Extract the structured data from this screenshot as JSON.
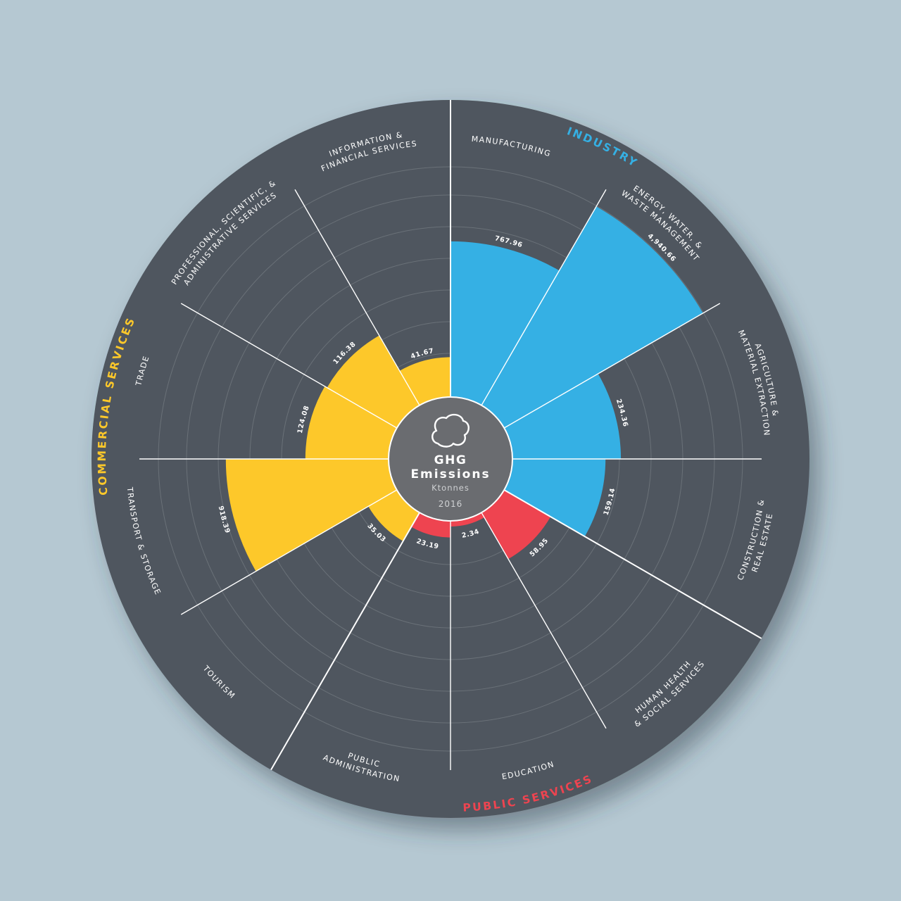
{
  "center": {
    "title_line1": "GHG",
    "title_line2": "Emissions",
    "unit": "Ktonnes",
    "year": "2016",
    "icon": "cloud-icon"
  },
  "colors": {
    "background": "#b5c8d2",
    "disc": "#50575e",
    "center": "#6a6c70",
    "grid": "#6a7178"
  },
  "chart_data": {
    "type": "polar-area",
    "unit": "Ktonnes",
    "groups": [
      {
        "name": "INDUSTRY",
        "color": "#35b0e4"
      },
      {
        "name": "PUBLIC SERVICES",
        "color": "#ee4450"
      },
      {
        "name": "COMMERCIAL SERVICES",
        "color": "#fdc82a"
      }
    ],
    "categories": [
      {
        "label": [
          "MANUFACTURING"
        ],
        "value": 767.96,
        "value_label": "767.96",
        "group": 0
      },
      {
        "label": [
          "ENERGY, WATER, &",
          "WASTE MANAGEMENT"
        ],
        "value": 4940.66,
        "value_label": "4,940.66",
        "group": 0
      },
      {
        "label": [
          "AGRICULTURE &",
          "MATERIAL EXTRACTION"
        ],
        "value": 234.36,
        "value_label": "234.36",
        "group": 0
      },
      {
        "label": [
          "CONSTRUCTION &",
          "REAL ESTATE"
        ],
        "value": 159.14,
        "value_label": "159.14",
        "group": 0
      },
      {
        "label": [
          "HUMAN HEALTH",
          "& SOCIAL SERVICES"
        ],
        "value": 58.95,
        "value_label": "58.95",
        "group": 1
      },
      {
        "label": [
          "EDUCATION"
        ],
        "value": 2.34,
        "value_label": "2.34",
        "group": 1
      },
      {
        "label": [
          "PUBLIC",
          "ADMINISTRATION"
        ],
        "value": 23.19,
        "value_label": "23.19",
        "group": 1
      },
      {
        "label": [
          "TOURISM"
        ],
        "value": 35.03,
        "value_label": "35.03",
        "group": 2
      },
      {
        "label": [
          "TRANSPORT & STORAGE"
        ],
        "value": 918.39,
        "value_label": "918.39",
        "group": 2
      },
      {
        "label": [
          "TRADE"
        ],
        "value": 124.08,
        "value_label": "124.08",
        "group": 2
      },
      {
        "label": [
          "PROFESSIONAL, SCIENTIFIC, &",
          "ADMINISTRATIVE SERVICES"
        ],
        "value": 116.38,
        "value_label": "116.38",
        "group": 2
      },
      {
        "label": [
          "INFORMATION &",
          "FINANCIAL SERVICES"
        ],
        "value": 41.67,
        "value_label": "41.67",
        "group": 2
      }
    ]
  }
}
